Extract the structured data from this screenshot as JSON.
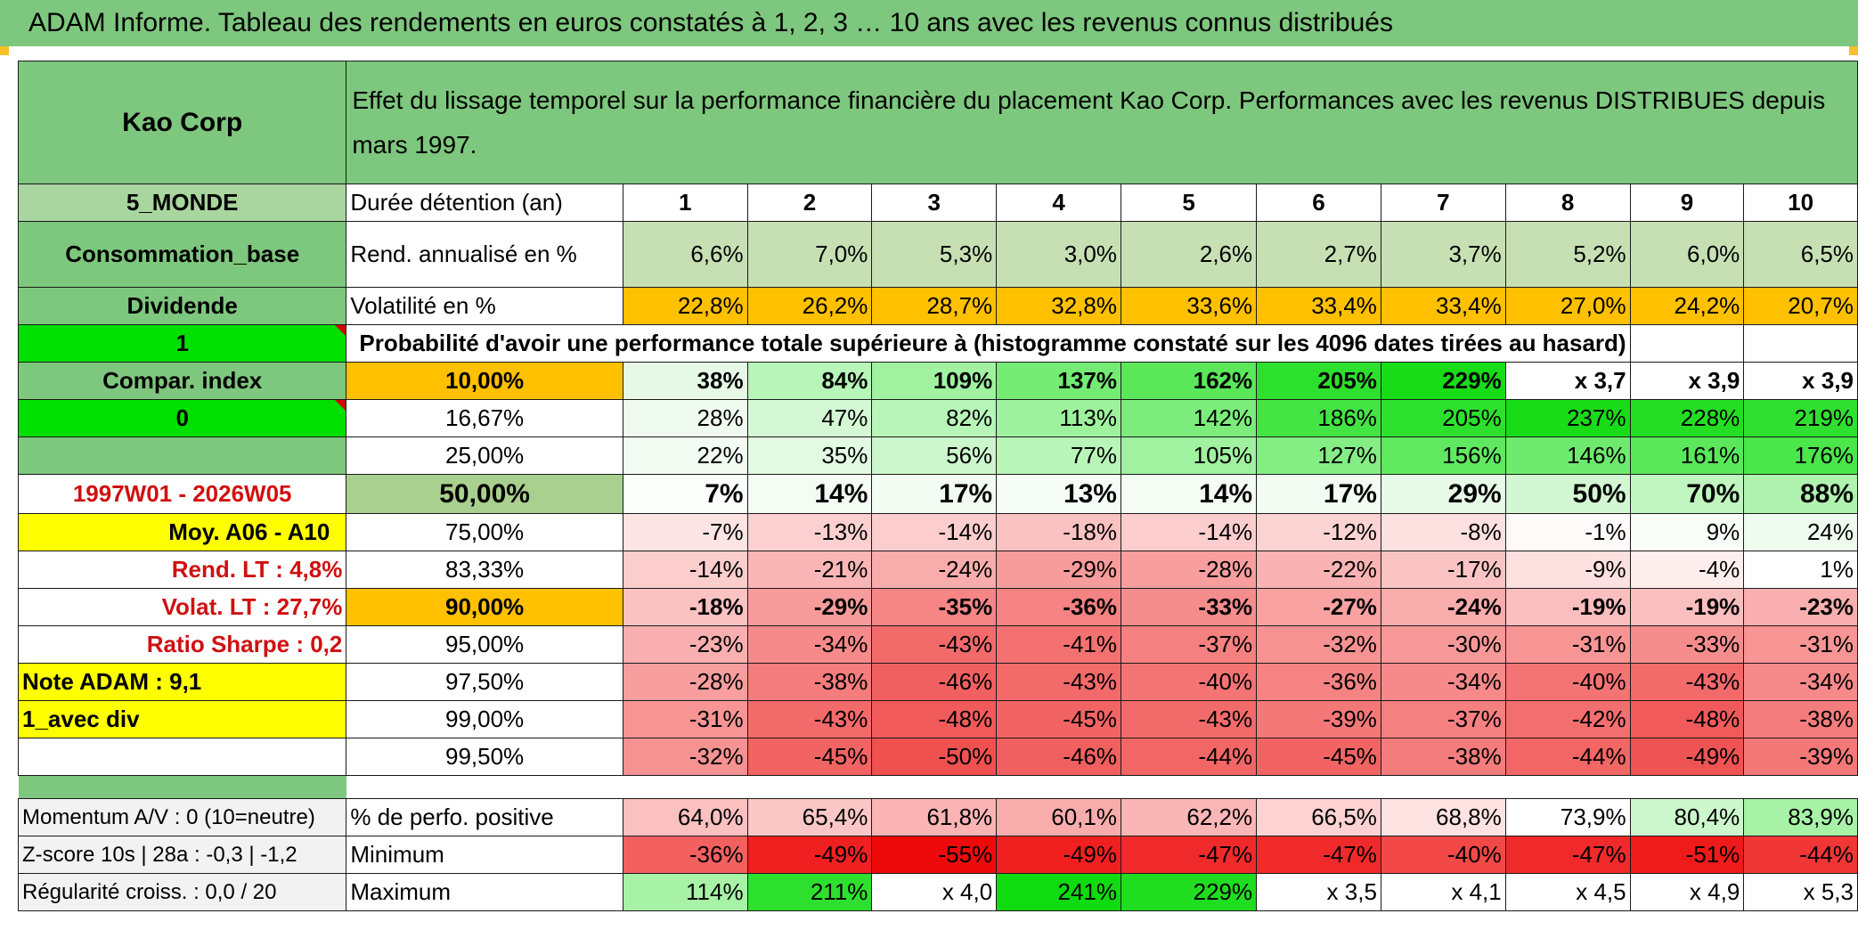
{
  "banner": "ADAM Informe. Tableau des rendements en euros constatés à 1, 2, 3 … 10 ans avec les revenus connus distribués",
  "colors": {
    "header_green": "#7ec77e",
    "light_green": "#c6e0b4",
    "orange": "#ffc000",
    "bright_green": "#00e000",
    "yellow": "#ffff00",
    "red_text": "#d01010"
  },
  "header": {
    "name": "Kao Corp",
    "description": "Effet du lissage temporel sur la performance financière du placement Kao Corp. Performances avec les revenus DISTRIBUES depuis mars 1997."
  },
  "years_row": {
    "label": "Durée détention (an)",
    "years": [
      "1",
      "2",
      "3",
      "4",
      "5",
      "6",
      "7",
      "8",
      "9",
      "10"
    ]
  },
  "rend_row": {
    "label": "Rend. annualisé en %",
    "values": [
      "6,6%",
      "7,0%",
      "5,3%",
      "3,0%",
      "2,6%",
      "2,7%",
      "3,7%",
      "5,2%",
      "6,0%",
      "6,5%"
    ]
  },
  "vol_row": {
    "label": "Volatilité en %",
    "values": [
      "22,8%",
      "26,2%",
      "28,7%",
      "32,8%",
      "33,6%",
      "33,4%",
      "33,4%",
      "27,0%",
      "24,2%",
      "20,7%"
    ]
  },
  "prob_title": "Probabilité d'avoir une performance totale supérieure à (histogramme constaté sur les 4096 dates tirées au hasard)",
  "left_labels": [
    "5_MONDE",
    "Consommation_base",
    "Dividende",
    "1",
    "Compar. index",
    "0",
    "",
    "1997W01 - 2026W05",
    "Moy. A06 - A10",
    "Rend. LT :    4,8%",
    "Volat. LT :    27,7%",
    "Ratio Sharpe :    0,2",
    "Note ADAM : 9,1",
    "1_avec div",
    ""
  ],
  "percentile_rows": [
    {
      "pct": "10,00%",
      "values": [
        "38%",
        "84%",
        "109%",
        "137%",
        "162%",
        "205%",
        "229%",
        "x 3,7",
        "x 3,9",
        "x 3,9"
      ],
      "colors": [
        "#e6f9e6",
        "#b8f5b8",
        "#a0f2a0",
        "#74ec74",
        "#5ae85a",
        "#2ee02e",
        "#18dc18",
        "#ffffff",
        "#ffffff",
        "#ffffff"
      ]
    },
    {
      "pct": "16,67%",
      "values": [
        "28%",
        "47%",
        "82%",
        "113%",
        "142%",
        "186%",
        "205%",
        "237%",
        "228%",
        "219%"
      ],
      "colors": [
        "#f0fbf0",
        "#d4f7d4",
        "#b8f5b8",
        "#9ef29e",
        "#7ced7c",
        "#44e444",
        "#2ee02e",
        "#18dc18",
        "#24de24",
        "#30e030"
      ]
    },
    {
      "pct": "25,00%",
      "values": [
        "22%",
        "35%",
        "56%",
        "77%",
        "105%",
        "127%",
        "156%",
        "146%",
        "161%",
        "176%"
      ],
      "colors": [
        "#f2fcf2",
        "#e2f9e2",
        "#ccf6cc",
        "#b8f5b8",
        "#a0f2a0",
        "#84ee84",
        "#60e960",
        "#6eeb6e",
        "#5ae85a",
        "#4ae64a"
      ]
    },
    {
      "pct": "50,00%",
      "values": [
        "7%",
        "14%",
        "17%",
        "13%",
        "14%",
        "17%",
        "29%",
        "50%",
        "70%",
        "88%"
      ],
      "colors": [
        "#fcfefc",
        "#f4fcf4",
        "#f2fcf2",
        "#f6fdf6",
        "#f4fcf4",
        "#f2fcf2",
        "#e8fae8",
        "#d2f7d2",
        "#c0f5c0",
        "#b0f3b0"
      ]
    },
    {
      "pct": "75,00%",
      "values": [
        "-7%",
        "-13%",
        "-14%",
        "-18%",
        "-14%",
        "-12%",
        "-8%",
        "-1%",
        "9%",
        "24%"
      ],
      "colors": [
        "#fde4e4",
        "#fcd0d0",
        "#fccdcd",
        "#fbc2c2",
        "#fccdcd",
        "#fcd3d3",
        "#fde0e0",
        "#fefafa",
        "#f8fdf8",
        "#eefbee"
      ]
    },
    {
      "pct": "83,33%",
      "values": [
        "-14%",
        "-21%",
        "-24%",
        "-29%",
        "-28%",
        "-22%",
        "-17%",
        "-9%",
        "-4%",
        "1%"
      ],
      "colors": [
        "#fccdcd",
        "#fab6b6",
        "#f9acac",
        "#f89b9b",
        "#f89e9e",
        "#fab3b3",
        "#fbc4c4",
        "#fde0e0",
        "#feeeee",
        "#ffffff"
      ]
    },
    {
      "pct": "90,00%",
      "values": [
        "-18%",
        "-29%",
        "-35%",
        "-36%",
        "-33%",
        "-27%",
        "-24%",
        "-19%",
        "-19%",
        "-23%"
      ],
      "colors": [
        "#fbc2c2",
        "#f89b9b",
        "#f68686",
        "#f58383",
        "#f68d8d",
        "#f9a2a2",
        "#f9acac",
        "#fbbebe",
        "#fbbebe",
        "#f9afaf"
      ]
    },
    {
      "pct": "95,00%",
      "values": [
        "-23%",
        "-34%",
        "-43%",
        "-41%",
        "-37%",
        "-32%",
        "-30%",
        "-31%",
        "-33%",
        "-31%"
      ],
      "colors": [
        "#f9afaf",
        "#f68a8a",
        "#f36a6a",
        "#f37171",
        "#f58080",
        "#f79292",
        "#f79898",
        "#f79494",
        "#f68d8d",
        "#f79494"
      ]
    },
    {
      "pct": "97,50%",
      "values": [
        "-28%",
        "-38%",
        "-46%",
        "-43%",
        "-40%",
        "-36%",
        "-34%",
        "-40%",
        "-43%",
        "-34%"
      ],
      "colors": [
        "#f89e9e",
        "#f47c7c",
        "#f16060",
        "#f36a6a",
        "#f47474",
        "#f58383",
        "#f68a8a",
        "#f47474",
        "#f36a6a",
        "#f68a8a"
      ]
    },
    {
      "pct": "99,00%",
      "values": [
        "-31%",
        "-43%",
        "-48%",
        "-45%",
        "-43%",
        "-39%",
        "-37%",
        "-42%",
        "-48%",
        "-38%"
      ],
      "colors": [
        "#f79494",
        "#f36a6a",
        "#f05a5a",
        "#f26464",
        "#f36a6a",
        "#f47878",
        "#f58080",
        "#f36e6e",
        "#f05a5a",
        "#f47c7c"
      ]
    },
    {
      "pct": "99,50%",
      "values": [
        "-32%",
        "-45%",
        "-50%",
        "-46%",
        "-44%",
        "-45%",
        "-38%",
        "-44%",
        "-49%",
        "-39%"
      ],
      "colors": [
        "#f79292",
        "#f26464",
        "#ef5050",
        "#f16060",
        "#f26666",
        "#f26464",
        "#f47c7c",
        "#f26666",
        "#ef5454",
        "#f47878"
      ]
    }
  ],
  "bottom_rows": [
    {
      "left": "Momentum A/V : 0 (10=neutre)",
      "label": "% de perfo. positive",
      "values": [
        "64,0%",
        "65,4%",
        "61,8%",
        "60,1%",
        "62,2%",
        "66,5%",
        "68,8%",
        "73,9%",
        "80,4%",
        "83,9%"
      ],
      "colors": [
        "#fbc0c0",
        "#fbc6c6",
        "#fab4b4",
        "#f9acac",
        "#fab6b6",
        "#fdd2d2",
        "#fde2e2",
        "#ffffff",
        "#ccf6cc",
        "#a8f2a8"
      ]
    },
    {
      "left": "Z-score 10s | 28a : -0,3 | -1,2",
      "label": "Minimum",
      "values": [
        "-36%",
        "-49%",
        "-55%",
        "-49%",
        "-47%",
        "-47%",
        "-40%",
        "-47%",
        "-51%",
        "-44%"
      ],
      "colors": [
        "#f36060",
        "#f02020",
        "#ee0a0a",
        "#f02020",
        "#f02a2a",
        "#f02a2a",
        "#f24848",
        "#f02a2a",
        "#ef1a1a",
        "#f13636"
      ]
    },
    {
      "left": "Régularité croiss. : 0,0 / 20",
      "label": "Maximum",
      "values": [
        "114%",
        "211%",
        "x 4,0",
        "241%",
        "229%",
        "x 3,5",
        "x 4,1",
        "x 4,5",
        "x 4,9",
        "x 5,3"
      ],
      "colors": [
        "#a8f2a8",
        "#2ee02e",
        "#ffffff",
        "#10da10",
        "#20dd20",
        "#ffffff",
        "#ffffff",
        "#ffffff",
        "#ffffff",
        "#ffffff"
      ]
    }
  ]
}
